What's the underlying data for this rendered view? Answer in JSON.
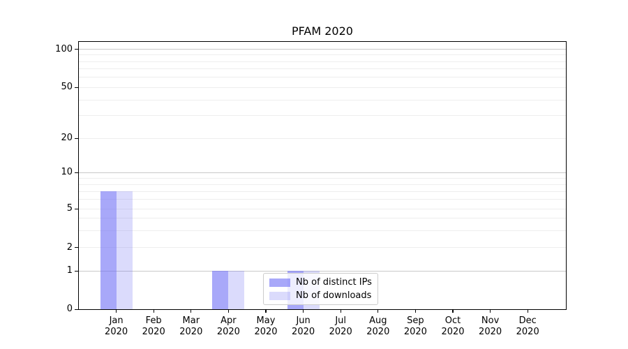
{
  "chart_data": {
    "type": "bar",
    "title": "PFAM 2020",
    "categories": [
      "Jan",
      "Feb",
      "Mar",
      "Apr",
      "May",
      "Jun",
      "Jul",
      "Aug",
      "Sep",
      "Oct",
      "Nov",
      "Dec"
    ],
    "category_sublabel": "2020",
    "series": [
      {
        "name": "Nb of distinct IPs",
        "color": "#a8a8f9",
        "color_rgba": "rgba(110,110,245,0.60)",
        "values": [
          7,
          0,
          0,
          1,
          0,
          1,
          0,
          0,
          0,
          0,
          0,
          0
        ]
      },
      {
        "name": "Nb of downloads",
        "color": "#dadaf9",
        "color_rgba": "rgba(110,110,245,0.25)",
        "values": [
          7,
          0,
          0,
          1,
          0,
          1,
          0,
          0,
          0,
          0,
          0,
          0
        ]
      }
    ],
    "y_axis": {
      "scale": "symlog",
      "major_ticks": [
        0,
        1,
        2,
        5,
        10,
        20,
        50,
        100
      ],
      "emphasized_gridlines": [
        1,
        10,
        100
      ],
      "minor_gridlines": [
        3,
        4,
        6,
        7,
        8,
        9,
        30,
        40,
        60,
        70,
        80,
        90
      ],
      "ylim": [
        0,
        120
      ]
    },
    "grid": "horizontal",
    "legend": {
      "position": "lower-center",
      "entries": [
        "Nb of distinct IPs",
        "Nb of downloads"
      ]
    },
    "colors": {
      "grid_major": "#c9c9c9",
      "grid_minor": "#eeeeee",
      "axis": "#000000",
      "background": "#ffffff",
      "text": "#000000"
    }
  }
}
